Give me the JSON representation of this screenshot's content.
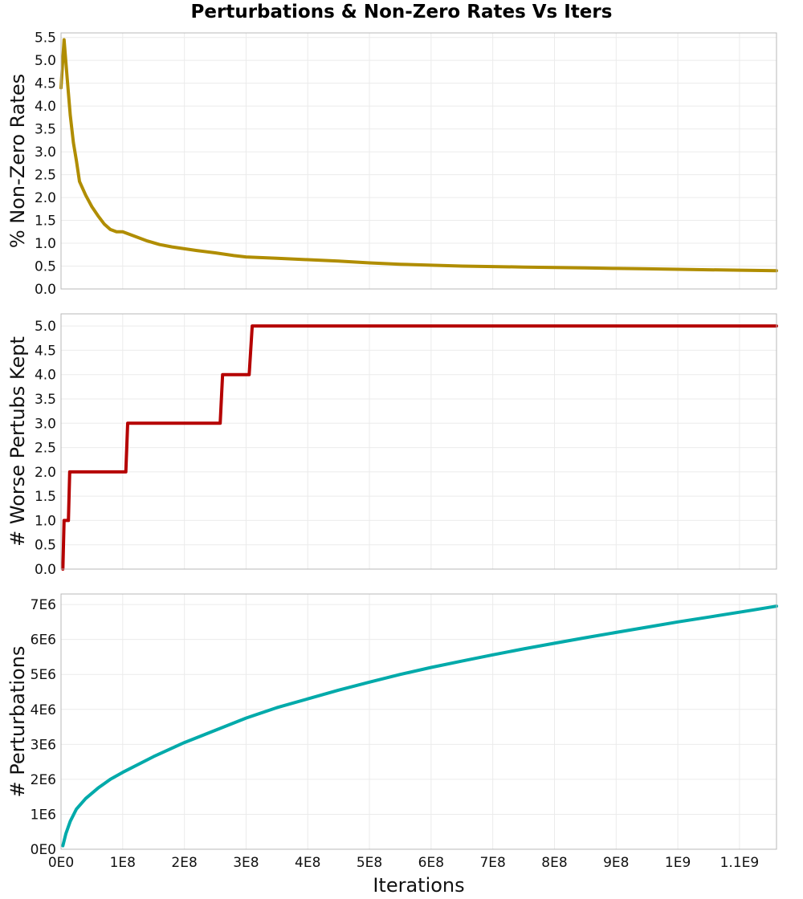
{
  "title": "Perturbations & Non-Zero Rates Vs Iters",
  "chart_data": [
    {
      "type": "line",
      "name": "top",
      "ylabel": "% Non-Zero Rates",
      "color": "#b08d00",
      "ylim": [
        0,
        5.6
      ],
      "yticks": [
        0.0,
        0.5,
        1.0,
        1.5,
        2.0,
        2.5,
        3.0,
        3.5,
        4.0,
        4.5,
        5.0,
        5.5
      ],
      "ytick_labels": [
        "0.0",
        "0.5",
        "1.0",
        "1.5",
        "2.0",
        "2.5",
        "3.0",
        "3.5",
        "4.0",
        "4.5",
        "5.0",
        "5.5"
      ],
      "grid": true,
      "series": [
        {
          "x": [
            0,
            5000000,
            10000000,
            15000000,
            20000000,
            25000000,
            30000000,
            40000000,
            50000000,
            60000000,
            70000000,
            80000000,
            90000000,
            100000000,
            120000000,
            140000000,
            160000000,
            180000000,
            200000000,
            220000000,
            250000000,
            280000000,
            300000000,
            350000000,
            400000000,
            450000000,
            500000000,
            550000000,
            600000000,
            650000000,
            700000000,
            750000000,
            800000000,
            850000000,
            900000000,
            950000000,
            1000000000,
            1050000000,
            1100000000,
            1160000000
          ],
          "y": [
            4.4,
            5.45,
            4.6,
            3.8,
            3.2,
            2.8,
            2.35,
            2.05,
            1.8,
            1.6,
            1.42,
            1.3,
            1.25,
            1.25,
            1.15,
            1.05,
            0.97,
            0.92,
            0.88,
            0.84,
            0.79,
            0.73,
            0.7,
            0.67,
            0.64,
            0.61,
            0.57,
            0.54,
            0.52,
            0.5,
            0.49,
            0.48,
            0.47,
            0.46,
            0.45,
            0.44,
            0.43,
            0.42,
            0.41,
            0.4
          ]
        }
      ]
    },
    {
      "type": "line",
      "name": "middle",
      "ylabel": "# Worse Pertubs Kept",
      "color": "#b50000",
      "ylim": [
        0,
        5.25
      ],
      "yticks": [
        0.0,
        0.5,
        1.0,
        1.5,
        2.0,
        2.5,
        3.0,
        3.5,
        4.0,
        4.5,
        5.0
      ],
      "ytick_labels": [
        "0.0",
        "0.5",
        "1.0",
        "1.5",
        "2.0",
        "2.5",
        "3.0",
        "3.5",
        "4.0",
        "4.5",
        "5.0"
      ],
      "grid": true,
      "series": [
        {
          "x": [
            3000000,
            5000000,
            8000000,
            12000000,
            14000000,
            105000000,
            108000000,
            258000000,
            262000000,
            305000000,
            310000000,
            1160000000
          ],
          "y": [
            0,
            1,
            1,
            1,
            2,
            2,
            3,
            3,
            4,
            4,
            5,
            5
          ]
        }
      ]
    },
    {
      "type": "line",
      "name": "bottom",
      "ylabel": "# Perturbations",
      "xlabel": "Iterations",
      "color": "#00aaaa",
      "ylim": [
        0,
        7300000
      ],
      "yticks": [
        0,
        1000000,
        2000000,
        3000000,
        4000000,
        5000000,
        6000000,
        7000000
      ],
      "ytick_labels": [
        "0E0",
        "1E6",
        "2E6",
        "3E6",
        "4E6",
        "5E6",
        "6E6",
        "7E6"
      ],
      "grid": true,
      "series": [
        {
          "x": [
            3000000,
            8000000,
            15000000,
            25000000,
            40000000,
            60000000,
            80000000,
            100000000,
            150000000,
            200000000,
            250000000,
            300000000,
            350000000,
            400000000,
            450000000,
            500000000,
            550000000,
            600000000,
            650000000,
            700000000,
            750000000,
            800000000,
            850000000,
            900000000,
            950000000,
            1000000000,
            1050000000,
            1100000000,
            1160000000
          ],
          "y": [
            100000,
            450000,
            800000,
            1150000,
            1450000,
            1750000,
            2000000,
            2200000,
            2650000,
            3050000,
            3400000,
            3750000,
            4050000,
            4300000,
            4550000,
            4780000,
            5000000,
            5200000,
            5380000,
            5560000,
            5730000,
            5890000,
            6050000,
            6200000,
            6350000,
            6500000,
            6640000,
            6780000,
            6950000
          ]
        }
      ]
    }
  ],
  "x_axis": {
    "xlim": [
      0,
      1160000000
    ],
    "xticks": [
      0,
      100000000,
      200000000,
      300000000,
      400000000,
      500000000,
      600000000,
      700000000,
      800000000,
      900000000,
      1000000000,
      1100000000
    ],
    "xtick_labels": [
      "0E0",
      "1E8",
      "2E8",
      "3E8",
      "4E8",
      "5E8",
      "6E8",
      "7E8",
      "8E8",
      "9E8",
      "1E9",
      "1.1E9"
    ],
    "xlabel": "Iterations"
  }
}
